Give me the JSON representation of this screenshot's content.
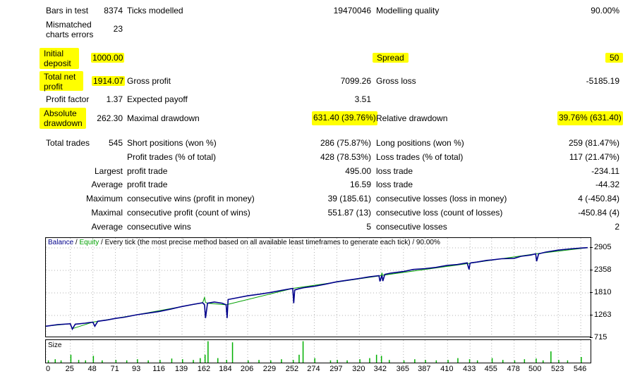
{
  "stats": {
    "bars_in_test_label": "Bars in test",
    "bars_in_test_value": "8374",
    "ticks_modelled_label": "Ticks modelled",
    "ticks_modelled_value": "19470046",
    "modelling_quality_label": "Modelling quality",
    "modelling_quality_value": "90.00%",
    "mismatched_label": "Mismatched charts errors",
    "mismatched_value": "23",
    "initial_deposit_label": "Initial deposit",
    "initial_deposit_value": "1000.00",
    "spread_label": "Spread",
    "spread_value": "50",
    "total_net_profit_label": "Total net profit",
    "total_net_profit_value": "1914.07",
    "gross_profit_label": "Gross profit",
    "gross_profit_value": "7099.26",
    "gross_loss_label": "Gross loss",
    "gross_loss_value": "-5185.19",
    "profit_factor_label": "Profit factor",
    "profit_factor_value": "1.37",
    "expected_payoff_label": "Expected payoff",
    "expected_payoff_value": "3.51",
    "absolute_drawdown_label": "Absolute drawdown",
    "absolute_drawdown_value": "262.30",
    "maximal_drawdown_label": "Maximal drawdown",
    "maximal_drawdown_value": "631.40 (39.76%)",
    "relative_drawdown_label": "Relative drawdown",
    "relative_drawdown_value": "39.76% (631.40)",
    "total_trades_label": "Total trades",
    "total_trades_value": "545",
    "short_positions_label": "Short positions (won %)",
    "short_positions_value": "286 (75.87%)",
    "long_positions_label": "Long positions (won %)",
    "long_positions_value": "259 (81.47%)",
    "profit_trades_label": "Profit trades (% of total)",
    "profit_trades_value": "428 (78.53%)",
    "loss_trades_label": "Loss trades (% of total)",
    "loss_trades_value": "117 (21.47%)",
    "largest_label": "Largest",
    "largest_profit_label": "profit trade",
    "largest_profit_value": "495.00",
    "largest_loss_label": "loss trade",
    "largest_loss_value": "-234.11",
    "average_label": "Average",
    "average_profit_label": "profit trade",
    "average_profit_value": "16.59",
    "average_loss_label": "loss trade",
    "average_loss_value": "-44.32",
    "maximum_label": "Maximum",
    "max_cons_wins_label": "consecutive wins (profit in money)",
    "max_cons_wins_value": "39 (185.61)",
    "max_cons_losses_label": "consecutive losses (loss in money)",
    "max_cons_losses_value": "4 (-450.84)",
    "maximal_label": "Maximal",
    "maximal_cons_profit_label": "consecutive profit (count of wins)",
    "maximal_cons_profit_value": "551.87 (13)",
    "maximal_cons_loss_label": "consecutive loss (count of losses)",
    "maximal_cons_loss_value": "-450.84 (4)",
    "average2_label": "Average",
    "avg_cons_wins_label": "consecutive wins",
    "avg_cons_wins_value": "5",
    "avg_cons_losses_label": "consecutive losses",
    "avg_cons_losses_value": "2"
  },
  "chart": {
    "legend_balance": "Balance",
    "legend_sep": " / ",
    "legend_equity": "Equity",
    "legend_rest": " / Every tick (the most precise method based on all available least timeframes to generate each tick) / 90.00%",
    "size_label": "Size",
    "colors": {
      "balance": "#00008b",
      "equity": "#00a000",
      "size": "#00b000",
      "highlight": "#ffff00"
    }
  },
  "chart_data": {
    "type": "line",
    "ytick_labels": [
      "2905",
      "2358",
      "1810",
      "1263",
      "715"
    ],
    "yticks": [
      2905,
      2358,
      1810,
      1263,
      715
    ],
    "ylim": [
      715,
      3000
    ],
    "xtick_labels": [
      "0",
      "25",
      "48",
      "71",
      "93",
      "116",
      "139",
      "162",
      "184",
      "206",
      "229",
      "252",
      "274",
      "297",
      "320",
      "342",
      "365",
      "387",
      "410",
      "433",
      "455",
      "478",
      "500",
      "523",
      "546"
    ],
    "xlim": [
      0,
      556
    ],
    "series": [
      {
        "name": "Balance",
        "x": [
          0,
          12,
          25,
          27,
          30,
          40,
          48,
          50,
          53,
          62,
          71,
          80,
          93,
          105,
          116,
          128,
          139,
          150,
          160,
          162,
          163,
          165,
          172,
          180,
          184,
          185,
          186,
          195,
          206,
          218,
          229,
          240,
          252,
          253,
          254,
          258,
          264,
          274,
          285,
          297,
          308,
          320,
          330,
          340,
          341,
          343,
          344,
          346,
          352,
          365,
          375,
          387,
          398,
          410,
          420,
          430,
          432,
          433,
          434,
          440,
          450,
          455,
          465,
          478,
          485,
          495,
          500,
          501,
          503,
          510,
          523,
          535,
          546,
          553
        ],
        "values": [
          1000,
          1040,
          1060,
          930,
          1050,
          1075,
          1100,
          1000,
          1120,
          1150,
          1190,
          1220,
          1280,
          1320,
          1360,
          1420,
          1480,
          1530,
          1570,
          1520,
          1200,
          1560,
          1590,
          1560,
          1520,
          1200,
          1650,
          1690,
          1740,
          1780,
          1820,
          1870,
          1920,
          1560,
          1880,
          1910,
          1940,
          1970,
          2020,
          2080,
          2120,
          2160,
          2200,
          2230,
          2090,
          2240,
          2100,
          2260,
          2290,
          2330,
          2380,
          2400,
          2430,
          2480,
          2500,
          2540,
          2380,
          2530,
          2540,
          2560,
          2600,
          2610,
          2640,
          2650,
          2700,
          2730,
          2760,
          2580,
          2760,
          2800,
          2850,
          2880,
          2900,
          2910
        ]
      },
      {
        "name": "Equity",
        "x": [
          0,
          25,
          27,
          48,
          93,
          160,
          162,
          163,
          165,
          184,
          252,
          342,
          343,
          344,
          433,
          500,
          553
        ],
        "values": [
          1000,
          1060,
          940,
          1100,
          1280,
          1570,
          1700,
          1580,
          1560,
          1520,
          1920,
          2230,
          2290,
          2240,
          2530,
          2760,
          2910
        ]
      }
    ],
    "size": {
      "x": [
        2,
        9,
        15,
        25,
        33,
        40,
        48,
        57,
        71,
        82,
        93,
        104,
        116,
        128,
        139,
        150,
        157,
        162,
        165,
        175,
        184,
        190,
        206,
        217,
        229,
        240,
        252,
        258,
        262,
        274,
        290,
        297,
        307,
        320,
        330,
        337,
        342,
        350,
        365,
        376,
        387,
        398,
        410,
        420,
        432,
        440,
        455,
        466,
        478,
        488,
        500,
        507,
        515,
        523,
        532,
        546
      ],
      "values": [
        0.1,
        0.15,
        0.1,
        0.35,
        0.12,
        0.1,
        0.3,
        0.1,
        0.12,
        0.1,
        0.15,
        0.1,
        0.12,
        0.18,
        0.15,
        0.12,
        0.2,
        0.35,
        0.95,
        0.2,
        0.12,
        0.9,
        0.1,
        0.12,
        0.1,
        0.15,
        0.12,
        0.35,
        0.95,
        0.2,
        0.1,
        0.12,
        0.1,
        0.15,
        0.2,
        0.35,
        0.3,
        0.12,
        0.1,
        0.15,
        0.12,
        0.1,
        0.12,
        0.2,
        0.15,
        0.1,
        0.2,
        0.12,
        0.1,
        0.15,
        0.18,
        0.1,
        0.5,
        0.12,
        0.1,
        0.25
      ]
    }
  }
}
